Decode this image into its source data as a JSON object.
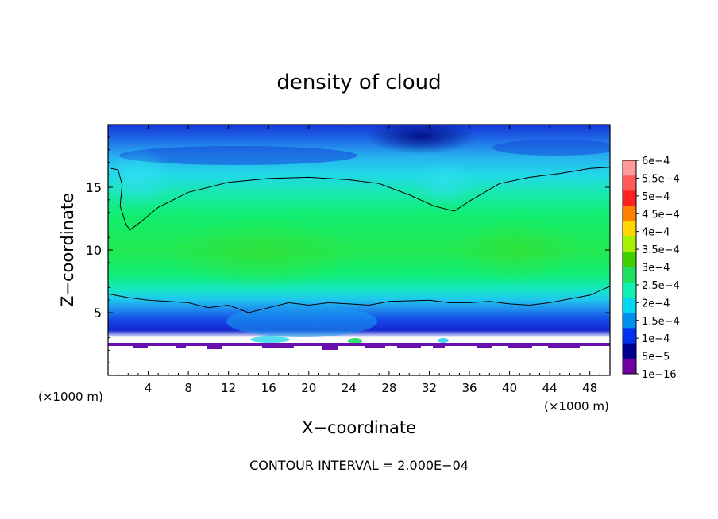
{
  "chart_data": {
    "type": "heatmap",
    "title": "density of cloud",
    "xlabel": "X−coordinate",
    "ylabel": "Z−coordinate",
    "x_unit": "(×1000 m)",
    "z_unit": "(×1000 m)",
    "footer": "CONTOUR INTERVAL = 2.000E−04",
    "xlim": [
      0,
      50
    ],
    "ylim": [
      0,
      20
    ],
    "x_ticks": [
      4,
      8,
      12,
      16,
      20,
      24,
      28,
      32,
      36,
      40,
      44,
      48
    ],
    "y_ticks": [
      5,
      10,
      15
    ],
    "colorbar": {
      "labels": [
        "6e−4",
        "5.5e−4",
        "5e−4",
        "4.5e−4",
        "4e−4",
        "3.5e−4",
        "3e−4",
        "2.5e−4",
        "2e−4",
        "1.5e−4",
        "1e−4",
        "5e−5",
        "1e−16"
      ],
      "colors": [
        "#ff9a9a",
        "#ff5a5a",
        "#ff2020",
        "#ff7f00",
        "#ffd700",
        "#a8f000",
        "#40d000",
        "#20e060",
        "#10f0b0",
        "#00d8f0",
        "#0090f0",
        "#0030f0",
        "#000090",
        "#7000a0"
      ]
    },
    "upper_contour": [
      [
        0.3,
        16.5
      ],
      [
        1,
        16.4
      ],
      [
        1.4,
        15.2
      ],
      [
        1.2,
        13.5
      ],
      [
        1.8,
        12.0
      ],
      [
        2.2,
        11.6
      ],
      [
        3.2,
        12.2
      ],
      [
        5,
        13.4
      ],
      [
        8,
        14.6
      ],
      [
        12,
        15.4
      ],
      [
        16,
        15.7
      ],
      [
        20,
        15.8
      ],
      [
        24,
        15.6
      ],
      [
        27,
        15.3
      ],
      [
        30,
        14.4
      ],
      [
        32.5,
        13.5
      ],
      [
        34.5,
        13.1
      ],
      [
        36,
        13.9
      ],
      [
        39,
        15.3
      ],
      [
        42,
        15.8
      ],
      [
        45,
        16.1
      ],
      [
        48,
        16.5
      ],
      [
        50,
        16.6
      ]
    ],
    "lower_contour": [
      [
        0,
        6.5
      ],
      [
        2,
        6.2
      ],
      [
        4,
        6.0
      ],
      [
        8,
        5.8
      ],
      [
        10,
        5.4
      ],
      [
        12,
        5.6
      ],
      [
        14,
        5.0
      ],
      [
        16,
        5.4
      ],
      [
        18,
        5.8
      ],
      [
        20,
        5.6
      ],
      [
        22,
        5.8
      ],
      [
        24,
        5.7
      ],
      [
        26,
        5.6
      ],
      [
        28,
        5.9
      ],
      [
        32,
        6.0
      ],
      [
        34,
        5.8
      ],
      [
        36,
        5.8
      ],
      [
        38,
        5.9
      ],
      [
        40,
        5.7
      ],
      [
        42,
        5.6
      ],
      [
        44,
        5.8
      ],
      [
        46,
        6.1
      ],
      [
        48,
        6.4
      ],
      [
        50,
        7.1
      ]
    ]
  }
}
